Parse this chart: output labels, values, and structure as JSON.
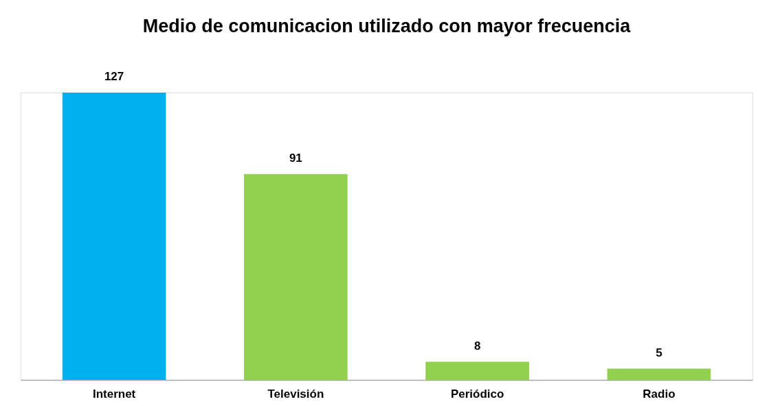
{
  "chart_data": {
    "type": "bar",
    "title": "Medio de comunicacion utilizado con mayor frecuencia",
    "categories": [
      "Internet",
      "Televisión",
      "Periódico",
      "Radio"
    ],
    "values": [
      127,
      91,
      8,
      5
    ],
    "colors": [
      "#00b0f0",
      "#92d050",
      "#92d050",
      "#92d050"
    ],
    "data_labels": true,
    "tick_labels": "x"
  }
}
